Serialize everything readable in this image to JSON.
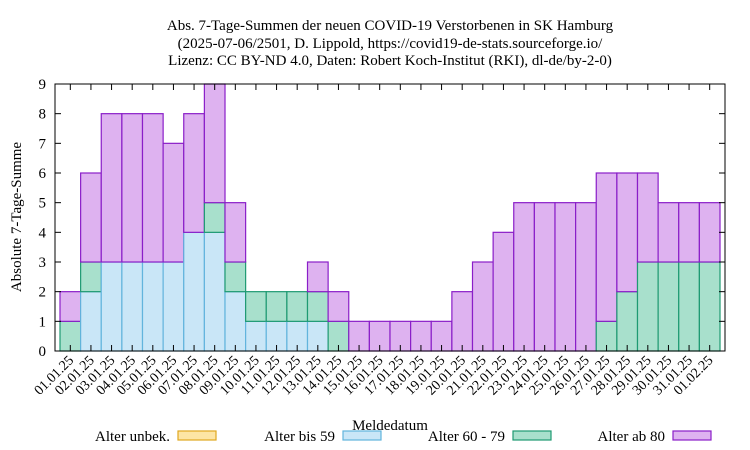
{
  "chart_data": {
    "type": "bar",
    "stacked": true,
    "title_lines": [
      "Abs. 7-Tage-Summen der neuen COVID-19 Verstorbenen in SK Hamburg",
      "(2025-07-06/2501, D. Lippold, https://covid19-de-stats.sourceforge.io/",
      "Lizenz: CC BY-ND 4.0, Daten: Robert Koch-Institut (RKI), dl-de/by-2-0)"
    ],
    "xlabel": "Meldedatum",
    "ylabel": "Absolute 7-Tage-Summe",
    "ylim": [
      0,
      9
    ],
    "yticks": [
      "0",
      "1",
      "2",
      "3",
      "4",
      "5",
      "6",
      "7",
      "8",
      "9"
    ],
    "categories": [
      "01.01.25",
      "02.01.25",
      "03.01.25",
      "04.01.25",
      "05.01.25",
      "06.01.25",
      "07.01.25",
      "08.01.25",
      "09.01.25",
      "10.01.25",
      "11.01.25",
      "12.01.25",
      "13.01.25",
      "14.01.25",
      "15.01.25",
      "16.01.25",
      "17.01.25",
      "18.01.25",
      "19.01.25",
      "20.01.25",
      "21.01.25",
      "22.01.25",
      "23.01.25",
      "24.01.25",
      "25.01.25",
      "26.01.25",
      "27.01.25",
      "28.01.25",
      "29.01.25",
      "30.01.25",
      "31.01.25",
      "01.02.25"
    ],
    "series": [
      {
        "name": "Alter unbek.",
        "color": "#fde5a5",
        "stroke": "#e0a820",
        "values": [
          0,
          0,
          0,
          0,
          0,
          0,
          0,
          0,
          0,
          0,
          0,
          0,
          0,
          0,
          0,
          0,
          0,
          0,
          0,
          0,
          0,
          0,
          0,
          0,
          0,
          0,
          0,
          0,
          0,
          0,
          0,
          0
        ]
      },
      {
        "name": "Alter bis 59",
        "color": "#c9e6f7",
        "stroke": "#62b4dd",
        "values": [
          0,
          2,
          3,
          3,
          3,
          3,
          4,
          4,
          2,
          1,
          1,
          1,
          1,
          0,
          0,
          0,
          0,
          0,
          0,
          0,
          0,
          0,
          0,
          0,
          0,
          0,
          0,
          0,
          0,
          0,
          0,
          0
        ]
      },
      {
        "name": "Alter 60 - 79",
        "color": "#a8e0cc",
        "stroke": "#1e9a72",
        "values": [
          1,
          1,
          0,
          0,
          0,
          0,
          0,
          1,
          1,
          1,
          1,
          1,
          1,
          1,
          0,
          0,
          0,
          0,
          0,
          0,
          0,
          0,
          0,
          0,
          0,
          0,
          1,
          2,
          3,
          3,
          3,
          3
        ]
      },
      {
        "name": "Alter ab 80",
        "color": "#deb2f0",
        "stroke": "#8a1ec8",
        "values": [
          1,
          3,
          5,
          5,
          5,
          4,
          4,
          4,
          2,
          0,
          0,
          0,
          1,
          1,
          1,
          1,
          1,
          1,
          1,
          2,
          3,
          4,
          5,
          5,
          5,
          5,
          5,
          4,
          3,
          2,
          2,
          2
        ]
      }
    ],
    "legend_position": "bottom",
    "grid": false
  }
}
